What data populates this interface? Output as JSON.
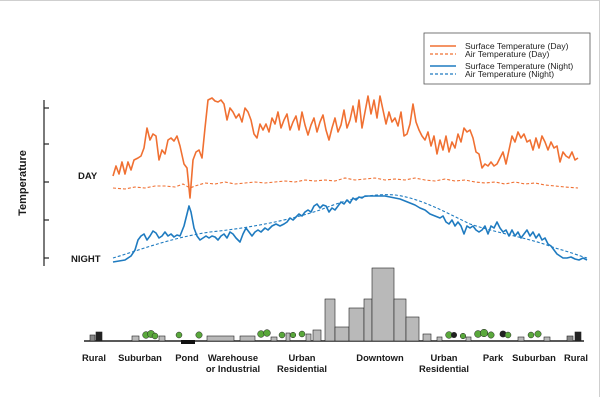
{
  "diagram": {
    "y_axis_label": "Temperature",
    "level_labels": {
      "day": "DAY",
      "night": "NIGHT"
    },
    "legend": [
      {
        "text": "Surface Temperature (Day)",
        "color": "#f07032",
        "style": "solid"
      },
      {
        "text": "Air Temperature  (Day)",
        "color": "#f07032",
        "style": "dashed"
      },
      {
        "text": "Surface Temperature (Night)",
        "color": "#1f7bc0",
        "style": "solid"
      },
      {
        "text": "Air Temperature (Night)",
        "color": "#1f7bc0",
        "style": "dashed"
      }
    ],
    "zones": [
      {
        "line1": "Rural",
        "line2": ""
      },
      {
        "line1": "Suburban",
        "line2": ""
      },
      {
        "line1": "Pond",
        "line2": ""
      },
      {
        "line1": "Warehouse",
        "line2": "or Industrial"
      },
      {
        "line1": "Urban",
        "line2": "Residential"
      },
      {
        "line1": "Downtown",
        "line2": ""
      },
      {
        "line1": "Urban",
        "line2": "Residential"
      },
      {
        "line1": "Park",
        "line2": ""
      },
      {
        "line1": "Suburban",
        "line2": ""
      },
      {
        "line1": "Rural",
        "line2": ""
      }
    ],
    "colors": {
      "day": "#f07032",
      "night": "#1f7bc0",
      "building": "#b9b9b9",
      "tree": "#5aa83c",
      "axis": "#222222"
    }
  }
}
